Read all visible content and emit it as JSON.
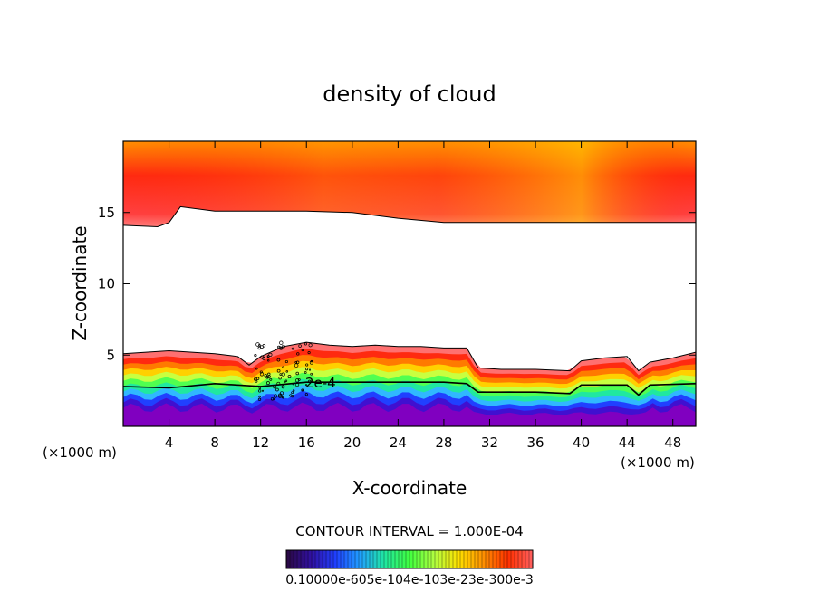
{
  "chart_data": {
    "type": "heatmap",
    "title": "density of cloud",
    "xlabel": "X-coordinate",
    "ylabel": "Z-coordinate",
    "x_unit": "(×1000 m)",
    "x_ticks": [
      4,
      8,
      12,
      16,
      20,
      24,
      28,
      32,
      36,
      40,
      44,
      48
    ],
    "y_ticks": [
      5,
      10,
      15
    ],
    "xlim": [
      0,
      50
    ],
    "ylim": [
      0,
      20
    ],
    "contour_interval_label": "CONTOUR INTERVAL = 1.000E-04",
    "contour_label": "2e-4",
    "colorbar_labels": [
      "0.10000",
      "e-605",
      "e-104",
      "e-103",
      "e-23",
      "e-300",
      "e-3"
    ],
    "colorbar_text": "0.10000e-605e-104e-103e-23e-300e-3",
    "lower_layer_top": [
      [
        0,
        5.1
      ],
      [
        2,
        5.2
      ],
      [
        4,
        5.3
      ],
      [
        6,
        5.2
      ],
      [
        8,
        5.1
      ],
      [
        10,
        4.9
      ],
      [
        11,
        4.3
      ],
      [
        12,
        4.9
      ],
      [
        14,
        5.6
      ],
      [
        16,
        5.9
      ],
      [
        18,
        5.7
      ],
      [
        20,
        5.6
      ],
      [
        22,
        5.7
      ],
      [
        24,
        5.6
      ],
      [
        26,
        5.6
      ],
      [
        28,
        5.5
      ],
      [
        30,
        5.5
      ],
      [
        31,
        4.1
      ],
      [
        33,
        4.0
      ],
      [
        36,
        4.0
      ],
      [
        39,
        3.9
      ],
      [
        40,
        4.6
      ],
      [
        42,
        4.8
      ],
      [
        44,
        4.9
      ],
      [
        45,
        3.9
      ],
      [
        46,
        4.5
      ],
      [
        48,
        4.8
      ],
      [
        50,
        5.2
      ]
    ],
    "upper_layer_bottom": [
      [
        0,
        14.1
      ],
      [
        3,
        14.0
      ],
      [
        4,
        14.3
      ],
      [
        5,
        15.4
      ],
      [
        8,
        15.1
      ],
      [
        12,
        15.1
      ],
      [
        16,
        15.1
      ],
      [
        20,
        15.0
      ],
      [
        24,
        14.6
      ],
      [
        28,
        14.3
      ],
      [
        32,
        14.3
      ],
      [
        36,
        14.3
      ],
      [
        40,
        14.3
      ],
      [
        44,
        14.3
      ],
      [
        48,
        14.3
      ],
      [
        50,
        14.3
      ]
    ],
    "contour_2e4": [
      [
        0,
        2.8
      ],
      [
        4,
        2.7
      ],
      [
        8,
        3.0
      ],
      [
        12,
        2.8
      ],
      [
        16,
        3.1
      ],
      [
        20,
        3.1
      ],
      [
        24,
        3.1
      ],
      [
        28,
        3.1
      ],
      [
        30,
        3.0
      ],
      [
        31,
        2.4
      ],
      [
        36,
        2.4
      ],
      [
        39,
        2.3
      ],
      [
        40,
        2.9
      ],
      [
        44,
        2.9
      ],
      [
        45,
        2.2
      ],
      [
        46,
        2.9
      ],
      [
        50,
        3.0
      ]
    ]
  },
  "colors": {
    "upper_gradient": [
      "#ff6060",
      "#ff1a10",
      "#ff4a00",
      "#ff9c00",
      "#ffd000"
    ],
    "lower_bands": [
      "#ff7070",
      "#ff2a10",
      "#ff7a00",
      "#ffd000",
      "#c8ff40",
      "#50ff50",
      "#20e8a0",
      "#30b8ff",
      "#2040ff",
      "#4010d0",
      "#8000c0"
    ],
    "colorbar": [
      "#2a0840",
      "#3010a0",
      "#2040ff",
      "#20a0ff",
      "#20e8a0",
      "#40ff40",
      "#b0ff40",
      "#ffe000",
      "#ff9000",
      "#ff3000",
      "#ff6060"
    ]
  }
}
